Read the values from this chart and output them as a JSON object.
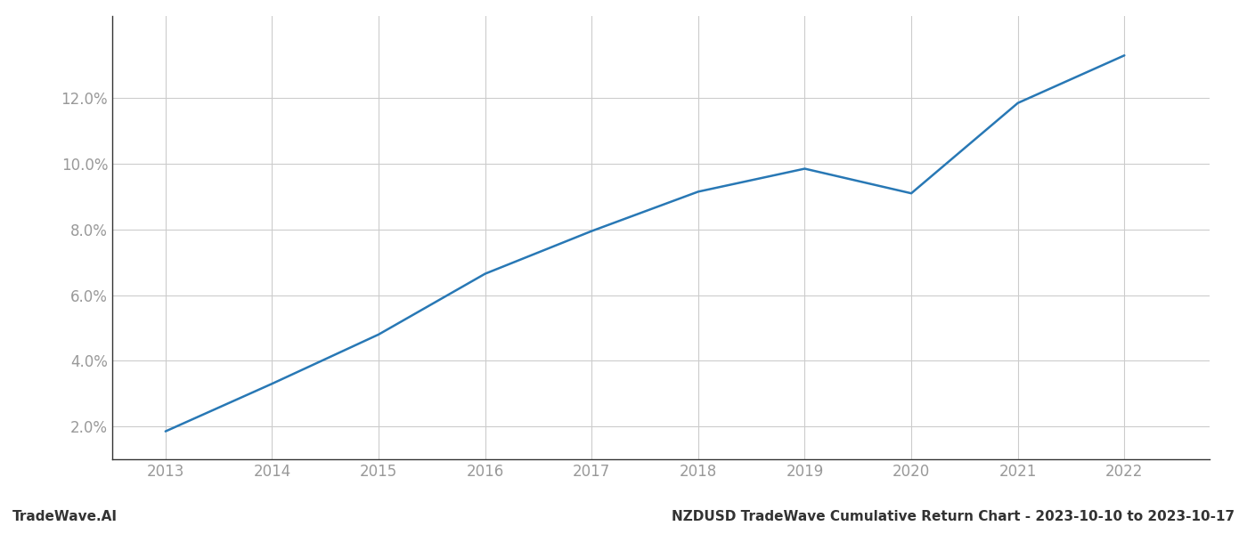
{
  "x_years": [
    2013,
    2014,
    2015,
    2016,
    2017,
    2018,
    2019,
    2020,
    2021,
    2022
  ],
  "y_values": [
    1.85,
    3.3,
    4.8,
    6.65,
    7.95,
    9.15,
    9.85,
    9.1,
    11.85,
    13.3
  ],
  "line_color": "#2878b5",
  "line_width": 1.8,
  "background_color": "#ffffff",
  "grid_color": "#cccccc",
  "title": "NZDUSD TradeWave Cumulative Return Chart - 2023-10-10 to 2023-10-17",
  "footer_left": "TradeWave.AI",
  "xlim": [
    2012.5,
    2022.8
  ],
  "ylim": [
    1.0,
    14.5
  ],
  "ytick_values": [
    2.0,
    4.0,
    6.0,
    8.0,
    10.0,
    12.0
  ],
  "xtick_values": [
    2013,
    2014,
    2015,
    2016,
    2017,
    2018,
    2019,
    2020,
    2021,
    2022
  ],
  "tick_label_color": "#999999",
  "footer_color": "#333333",
  "title_fontsize": 11,
  "tick_fontsize": 12,
  "footer_fontsize": 11
}
